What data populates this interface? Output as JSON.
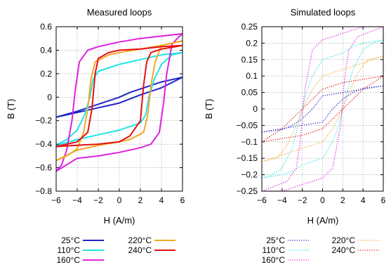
{
  "chart_data": [
    {
      "type": "line",
      "title": "Measured loops",
      "xlabel": "H (A/m)",
      "ylabel": "B (T)",
      "xlim": [
        -6,
        6
      ],
      "ylim": [
        -0.8,
        0.6
      ],
      "xticks": [
        -6,
        -4,
        -2,
        0,
        2,
        4,
        6
      ],
      "yticks": [
        -0.8,
        -0.6,
        -0.4,
        -0.2,
        0,
        0.2,
        0.4,
        0.6
      ],
      "xtick_labels": [
        "−6",
        "−4",
        "−2",
        "0",
        "2",
        "4",
        "6"
      ],
      "ytick_labels": [
        "−0.8",
        "−0.6",
        "−0.4",
        "−0.2",
        "0",
        "0.2",
        "0.4",
        "0.6"
      ],
      "grid": true,
      "line_style": "solid",
      "legend_position": "below",
      "series": [
        {
          "name": "25°C",
          "color": "#1f24c8",
          "upper": [
            [
              -6,
              -0.17
            ],
            [
              -4,
              -0.12
            ],
            [
              -2,
              -0.06
            ],
            [
              0,
              0.0
            ],
            [
              1,
              0.04
            ],
            [
              2,
              0.07
            ],
            [
              3,
              0.1
            ],
            [
              4,
              0.13
            ],
            [
              6,
              0.17
            ]
          ],
          "lower": [
            [
              -6,
              -0.17
            ],
            [
              -5,
              -0.15
            ],
            [
              -4,
              -0.13
            ],
            [
              -3,
              -0.11
            ],
            [
              -2,
              -0.09
            ],
            [
              -1,
              -0.07
            ],
            [
              0,
              -0.05
            ],
            [
              2,
              0.02
            ],
            [
              4,
              0.08
            ],
            [
              6,
              0.17
            ]
          ]
        },
        {
          "name": "110°C",
          "color": "#22e5e5",
          "upper": [
            [
              -6,
              -0.41
            ],
            [
              -5,
              -0.36
            ],
            [
              -4,
              -0.28
            ],
            [
              -3.3,
              -0.15
            ],
            [
              -2.8,
              0.0
            ],
            [
              -2.5,
              0.15
            ],
            [
              -2,
              0.22
            ],
            [
              0,
              0.28
            ],
            [
              2,
              0.32
            ],
            [
              4,
              0.36
            ],
            [
              6,
              0.38
            ]
          ],
          "lower": [
            [
              -6,
              -0.41
            ],
            [
              -4,
              -0.36
            ],
            [
              -2,
              -0.32
            ],
            [
              0,
              -0.28
            ],
            [
              2,
              -0.22
            ],
            [
              2.5,
              -0.15
            ],
            [
              2.8,
              0.0
            ],
            [
              3.3,
              0.15
            ],
            [
              4,
              0.28
            ],
            [
              5,
              0.36
            ],
            [
              6,
              0.38
            ]
          ]
        },
        {
          "name": "160°C",
          "color": "#e020e0",
          "upper": [
            [
              -6,
              -0.63
            ],
            [
              -5.5,
              -0.58
            ],
            [
              -5,
              -0.45
            ],
            [
              -4.5,
              -0.2
            ],
            [
              -4.2,
              0.05
            ],
            [
              -3.8,
              0.3
            ],
            [
              -3,
              0.4
            ],
            [
              -2,
              0.43
            ],
            [
              0,
              0.47
            ],
            [
              2,
              0.5
            ],
            [
              4,
              0.52
            ],
            [
              6,
              0.54
            ]
          ],
          "lower": [
            [
              -6,
              -0.63
            ],
            [
              -4,
              -0.52
            ],
            [
              -2,
              -0.5
            ],
            [
              0,
              -0.47
            ],
            [
              2,
              -0.43
            ],
            [
              3,
              -0.4
            ],
            [
              3.8,
              -0.3
            ],
            [
              4.2,
              -0.05
            ],
            [
              4.5,
              0.2
            ],
            [
              5,
              0.45
            ],
            [
              5.5,
              0.5
            ],
            [
              6,
              0.54
            ]
          ]
        },
        {
          "name": "220°C",
          "color": "#f5a623",
          "upper": [
            [
              -6,
              -0.54
            ],
            [
              -5,
              -0.5
            ],
            [
              -4,
              -0.44
            ],
            [
              -3.4,
              -0.3
            ],
            [
              -3,
              -0.1
            ],
            [
              -2.7,
              0.15
            ],
            [
              -2.3,
              0.3
            ],
            [
              -1,
              0.36
            ],
            [
              0,
              0.38
            ],
            [
              2,
              0.41
            ],
            [
              4,
              0.44
            ],
            [
              6,
              0.48
            ]
          ],
          "lower": [
            [
              -6,
              -0.54
            ],
            [
              -4,
              -0.45
            ],
            [
              -2,
              -0.41
            ],
            [
              0,
              -0.38
            ],
            [
              1,
              -0.36
            ],
            [
              2.3,
              -0.3
            ],
            [
              2.7,
              -0.15
            ],
            [
              3,
              0.1
            ],
            [
              3.4,
              0.3
            ],
            [
              4,
              0.44
            ],
            [
              6,
              0.48
            ]
          ]
        },
        {
          "name": "240°C",
          "color": "#e51010",
          "upper": [
            [
              -6,
              -0.42
            ],
            [
              -4,
              -0.38
            ],
            [
              -3,
              -0.3
            ],
            [
              -2.6,
              -0.1
            ],
            [
              -2.3,
              0.2
            ],
            [
              -2,
              0.33
            ],
            [
              -1,
              0.38
            ],
            [
              0,
              0.4
            ],
            [
              2,
              0.41
            ],
            [
              4,
              0.43
            ],
            [
              6,
              0.44
            ]
          ],
          "lower": [
            [
              -6,
              -0.42
            ],
            [
              -4,
              -0.41
            ],
            [
              -2,
              -0.4
            ],
            [
              0,
              -0.38
            ],
            [
              1,
              -0.33
            ],
            [
              2,
              -0.2
            ],
            [
              2.3,
              0.1
            ],
            [
              2.6,
              0.3
            ],
            [
              3,
              0.38
            ],
            [
              4,
              0.41
            ],
            [
              6,
              0.44
            ]
          ]
        }
      ]
    },
    {
      "type": "line",
      "title": "Simulated loops",
      "xlabel": "H (A/m)",
      "ylabel": "B (T)",
      "xlim": [
        -6,
        6
      ],
      "ylim": [
        -0.25,
        0.25
      ],
      "xticks": [
        -6,
        -4,
        -2,
        0,
        2,
        4,
        6
      ],
      "yticks": [
        -0.25,
        -0.2,
        -0.15,
        -0.1,
        -0.05,
        0,
        0.05,
        0.1,
        0.15,
        0.2,
        0.25
      ],
      "xtick_labels": [
        "−6",
        "−4",
        "−2",
        "0",
        "2",
        "4",
        "6"
      ],
      "ytick_labels": [
        "−0.25",
        "−0.2",
        "−0.15",
        "−0.1",
        "−0.05",
        "0",
        "0.05",
        "0.1",
        "0.15",
        "0.2",
        "0.25"
      ],
      "grid": true,
      "line_style": "dotted",
      "legend_position": "below",
      "series": [
        {
          "name": "25°C",
          "color": "#1f24c8",
          "upper": [
            [
              -6,
              -0.07
            ],
            [
              -4,
              -0.06
            ],
            [
              -2,
              -0.05
            ],
            [
              0,
              -0.04
            ],
            [
              1,
              0.0
            ],
            [
              2,
              0.03
            ],
            [
              3,
              0.05
            ],
            [
              4,
              0.063
            ],
            [
              6,
              0.07
            ]
          ],
          "lower": [
            [
              -6,
              -0.07
            ],
            [
              -4,
              -0.063
            ],
            [
              -3,
              -0.05
            ],
            [
              -2,
              -0.03
            ],
            [
              -1,
              0.0
            ],
            [
              0,
              0.04
            ],
            [
              2,
              0.05
            ],
            [
              4,
              0.06
            ],
            [
              6,
              0.07
            ]
          ]
        },
        {
          "name": "110°C",
          "color": "#22e5e5",
          "upper": [
            [
              -6,
              -0.21
            ],
            [
              -4,
              -0.2
            ],
            [
              -3,
              -0.19
            ],
            [
              -2,
              -0.17
            ],
            [
              0,
              -0.15
            ],
            [
              1,
              -0.1
            ],
            [
              1.6,
              -0.05
            ],
            [
              2,
              0.0
            ],
            [
              2.5,
              0.06
            ],
            [
              3,
              0.12
            ],
            [
              4,
              0.18
            ],
            [
              5,
              0.2
            ],
            [
              6,
              0.21
            ]
          ],
          "lower": [
            [
              -6,
              -0.21
            ],
            [
              -5,
              -0.2
            ],
            [
              -4,
              -0.18
            ],
            [
              -3,
              -0.12
            ],
            [
              -2.5,
              -0.06
            ],
            [
              -2,
              0.0
            ],
            [
              -1.6,
              0.05
            ],
            [
              -1,
              0.1
            ],
            [
              0,
              0.15
            ],
            [
              2,
              0.17
            ],
            [
              3,
              0.19
            ],
            [
              4,
              0.2
            ],
            [
              6,
              0.21
            ]
          ]
        },
        {
          "name": "160°C",
          "color": "#e020e0",
          "upper": [
            [
              -6,
              -0.25
            ],
            [
              -4,
              -0.25
            ],
            [
              -3,
              -0.24
            ],
            [
              -2,
              -0.23
            ],
            [
              0,
              -0.21
            ],
            [
              1,
              -0.18
            ],
            [
              1.8,
              -0.05
            ],
            [
              2.2,
              0.1
            ],
            [
              2.6,
              0.18
            ],
            [
              3.5,
              0.22
            ],
            [
              6,
              0.25
            ]
          ],
          "lower": [
            [
              -6,
              -0.25
            ],
            [
              -3.5,
              -0.22
            ],
            [
              -2.6,
              -0.18
            ],
            [
              -2.2,
              -0.1
            ],
            [
              -1.8,
              0.05
            ],
            [
              -1,
              0.18
            ],
            [
              0,
              0.21
            ],
            [
              2,
              0.23
            ],
            [
              3,
              0.24
            ],
            [
              4,
              0.25
            ],
            [
              6,
              0.25
            ]
          ]
        },
        {
          "name": "220°C",
          "color": "#f5a623",
          "upper": [
            [
              -6,
              -0.16
            ],
            [
              -4,
              -0.14
            ],
            [
              -2,
              -0.12
            ],
            [
              -1,
              -0.11
            ],
            [
              0,
              -0.1
            ],
            [
              1,
              -0.06
            ],
            [
              2,
              0.0
            ],
            [
              2.6,
              0.05
            ],
            [
              3.5,
              0.11
            ],
            [
              4.5,
              0.15
            ],
            [
              6,
              0.16
            ]
          ],
          "lower": [
            [
              -6,
              -0.16
            ],
            [
              -4.5,
              -0.15
            ],
            [
              -3.5,
              -0.11
            ],
            [
              -2.6,
              -0.05
            ],
            [
              -2,
              0.0
            ],
            [
              -1,
              0.06
            ],
            [
              0,
              0.1
            ],
            [
              1,
              0.11
            ],
            [
              2,
              0.12
            ],
            [
              4,
              0.14
            ],
            [
              6,
              0.16
            ]
          ]
        },
        {
          "name": "240°C",
          "color": "#e51010",
          "upper": [
            [
              -6,
              -0.1
            ],
            [
              -4,
              -0.09
            ],
            [
              -2,
              -0.08
            ],
            [
              0,
              -0.06
            ],
            [
              1,
              -0.03
            ],
            [
              2,
              0.0
            ],
            [
              3,
              0.03
            ],
            [
              4,
              0.06
            ],
            [
              5,
              0.08
            ],
            [
              6,
              0.1
            ]
          ],
          "lower": [
            [
              -6,
              -0.1
            ],
            [
              -5,
              -0.08
            ],
            [
              -4,
              -0.06
            ],
            [
              -3,
              -0.03
            ],
            [
              -2,
              0.0
            ],
            [
              -1,
              0.03
            ],
            [
              0,
              0.06
            ],
            [
              2,
              0.08
            ],
            [
              4,
              0.09
            ],
            [
              6,
              0.1
            ]
          ]
        }
      ]
    }
  ]
}
